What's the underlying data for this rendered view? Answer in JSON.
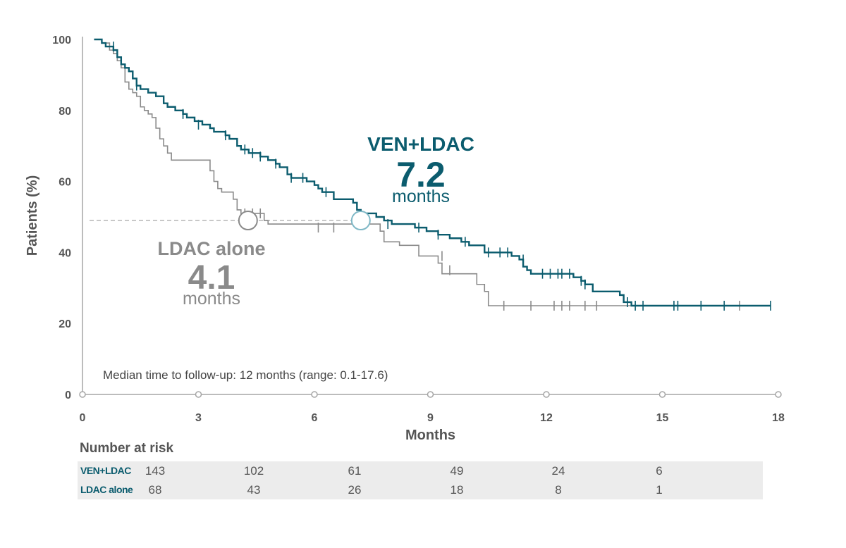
{
  "colors": {
    "ven": "#0b5c6e",
    "ldac": "#8a8a8a",
    "ven_circle": "#7fb8c6",
    "axis": "#a6a6a6",
    "text": "#555555",
    "ref_line": "#b5b5b5"
  },
  "chart_data": {
    "type": "line",
    "subtype": "kaplan-meier",
    "xlabel": "Months",
    "ylabel": "Patients (%)",
    "xlim": [
      0,
      18
    ],
    "ylim": [
      0,
      100
    ],
    "x_ticks": [
      0,
      3,
      6,
      9,
      12,
      15,
      18
    ],
    "y_ticks": [
      0,
      20,
      40,
      60,
      80,
      100
    ],
    "note": "Median time to follow-up: 12 months (range: 0.1-17.6)",
    "median_ref_y": 49,
    "series": [
      {
        "name": "VEN+LDAC",
        "median_months": 7.2,
        "median_value_text": "7.2",
        "median_unit": "months",
        "steps": [
          [
            0.3,
            100
          ],
          [
            0.5,
            99
          ],
          [
            0.6,
            98
          ],
          [
            0.8,
            97
          ],
          [
            0.9,
            95
          ],
          [
            1.0,
            93
          ],
          [
            1.1,
            92
          ],
          [
            1.2,
            91
          ],
          [
            1.3,
            89
          ],
          [
            1.4,
            87
          ],
          [
            1.5,
            86
          ],
          [
            1.6,
            86
          ],
          [
            1.7,
            85
          ],
          [
            1.8,
            85
          ],
          [
            1.9,
            84
          ],
          [
            2.0,
            84
          ],
          [
            2.1,
            82
          ],
          [
            2.2,
            81
          ],
          [
            2.3,
            81
          ],
          [
            2.4,
            80
          ],
          [
            2.5,
            80
          ],
          [
            2.6,
            79
          ],
          [
            2.7,
            78
          ],
          [
            2.8,
            78
          ],
          [
            2.9,
            77
          ],
          [
            3.0,
            77
          ],
          [
            3.1,
            76
          ],
          [
            3.3,
            75
          ],
          [
            3.4,
            74
          ],
          [
            3.6,
            74
          ],
          [
            3.7,
            73
          ],
          [
            3.8,
            72
          ],
          [
            3.9,
            72
          ],
          [
            4.0,
            70
          ],
          [
            4.1,
            69
          ],
          [
            4.2,
            69
          ],
          [
            4.3,
            68
          ],
          [
            4.6,
            67
          ],
          [
            4.7,
            67
          ],
          [
            4.8,
            66
          ],
          [
            5.0,
            65
          ],
          [
            5.1,
            64
          ],
          [
            5.2,
            64
          ],
          [
            5.3,
            62
          ],
          [
            5.4,
            61
          ],
          [
            5.6,
            61
          ],
          [
            5.8,
            60
          ],
          [
            6.0,
            59
          ],
          [
            6.1,
            58
          ],
          [
            6.2,
            57
          ],
          [
            6.5,
            55
          ],
          [
            6.8,
            55
          ],
          [
            7.0,
            54
          ],
          [
            7.1,
            52
          ],
          [
            7.2,
            51
          ],
          [
            7.4,
            51
          ],
          [
            7.6,
            50
          ],
          [
            7.8,
            49
          ],
          [
            8.0,
            48
          ],
          [
            8.6,
            47
          ],
          [
            8.9,
            46
          ],
          [
            9.2,
            45
          ],
          [
            9.5,
            44
          ],
          [
            9.8,
            43
          ],
          [
            10.0,
            42
          ],
          [
            10.4,
            40
          ],
          [
            10.6,
            40
          ],
          [
            11.1,
            39
          ],
          [
            11.3,
            38
          ],
          [
            11.4,
            36
          ],
          [
            11.5,
            35
          ],
          [
            11.6,
            34
          ],
          [
            12.4,
            34
          ],
          [
            12.7,
            33
          ],
          [
            12.9,
            32
          ],
          [
            13.0,
            31
          ],
          [
            13.2,
            29
          ],
          [
            13.9,
            28
          ],
          [
            14.0,
            26
          ],
          [
            14.2,
            25
          ],
          [
            17.8,
            25
          ]
        ],
        "censored": [
          [
            0.8,
            98
          ],
          [
            1.4,
            87
          ],
          [
            2.6,
            79
          ],
          [
            3.0,
            76
          ],
          [
            3.7,
            73
          ],
          [
            4.2,
            69
          ],
          [
            4.4,
            68
          ],
          [
            4.6,
            67
          ],
          [
            5.0,
            65
          ],
          [
            5.4,
            61
          ],
          [
            5.7,
            61
          ],
          [
            6.3,
            57
          ],
          [
            7.9,
            48
          ],
          [
            8.7,
            47
          ],
          [
            9.2,
            45
          ],
          [
            9.9,
            43
          ],
          [
            10.5,
            40
          ],
          [
            10.8,
            40
          ],
          [
            11.0,
            40
          ],
          [
            11.4,
            38
          ],
          [
            11.9,
            34
          ],
          [
            12.1,
            34
          ],
          [
            12.3,
            34
          ],
          [
            12.4,
            34
          ],
          [
            12.6,
            34
          ],
          [
            12.9,
            32
          ],
          [
            13.0,
            31
          ],
          [
            14.1,
            26
          ],
          [
            14.3,
            25
          ],
          [
            14.5,
            25
          ],
          [
            15.3,
            25
          ],
          [
            15.4,
            25
          ],
          [
            16.0,
            25
          ],
          [
            16.6,
            25
          ],
          [
            17.8,
            25
          ]
        ]
      },
      {
        "name": "LDAC alone",
        "median_months": 4.1,
        "median_value_text": "4.1",
        "median_unit": "months",
        "steps": [
          [
            0.3,
            100
          ],
          [
            0.5,
            99
          ],
          [
            0.7,
            97
          ],
          [
            0.8,
            96
          ],
          [
            0.9,
            94
          ],
          [
            1.0,
            92
          ],
          [
            1.1,
            88
          ],
          [
            1.2,
            86
          ],
          [
            1.3,
            85
          ],
          [
            1.4,
            84
          ],
          [
            1.5,
            81
          ],
          [
            1.6,
            80
          ],
          [
            1.7,
            79
          ],
          [
            1.8,
            78
          ],
          [
            1.9,
            75
          ],
          [
            2.0,
            72
          ],
          [
            2.1,
            70
          ],
          [
            2.2,
            68
          ],
          [
            2.3,
            66
          ],
          [
            2.8,
            66
          ],
          [
            3.3,
            63
          ],
          [
            3.4,
            60
          ],
          [
            3.5,
            58
          ],
          [
            3.6,
            57
          ],
          [
            3.7,
            57
          ],
          [
            3.9,
            55
          ],
          [
            4.0,
            52
          ],
          [
            4.1,
            51
          ],
          [
            4.6,
            51
          ],
          [
            4.7,
            49
          ],
          [
            4.8,
            48
          ],
          [
            7.7,
            46
          ],
          [
            7.8,
            43
          ],
          [
            8.2,
            42
          ],
          [
            8.7,
            39
          ],
          [
            9.2,
            37
          ],
          [
            9.3,
            34
          ],
          [
            10.1,
            34
          ],
          [
            10.2,
            31
          ],
          [
            10.4,
            29
          ],
          [
            10.5,
            25
          ],
          [
            17.3,
            25
          ]
        ],
        "censored": [
          [
            4.2,
            51
          ],
          [
            4.4,
            51
          ],
          [
            4.6,
            51
          ],
          [
            6.1,
            47
          ],
          [
            6.5,
            47
          ],
          [
            9.3,
            39
          ],
          [
            9.5,
            35
          ],
          [
            10.9,
            25
          ],
          [
            11.6,
            25
          ],
          [
            12.2,
            25
          ],
          [
            12.4,
            25
          ],
          [
            12.6,
            25
          ],
          [
            13.0,
            25
          ],
          [
            13.3,
            25
          ],
          [
            17.0,
            25
          ]
        ]
      }
    ],
    "number_at_risk": {
      "title": "Number at risk",
      "times": [
        0,
        3,
        6,
        9,
        12,
        15
      ],
      "rows": [
        {
          "name": "VEN+LDAC",
          "counts": [
            "143",
            "102",
            "61",
            "49",
            "24",
            "6"
          ]
        },
        {
          "name": "LDAC alone",
          "counts": [
            "68",
            "43",
            "26",
            "18",
            "8",
            "1"
          ]
        }
      ]
    }
  }
}
